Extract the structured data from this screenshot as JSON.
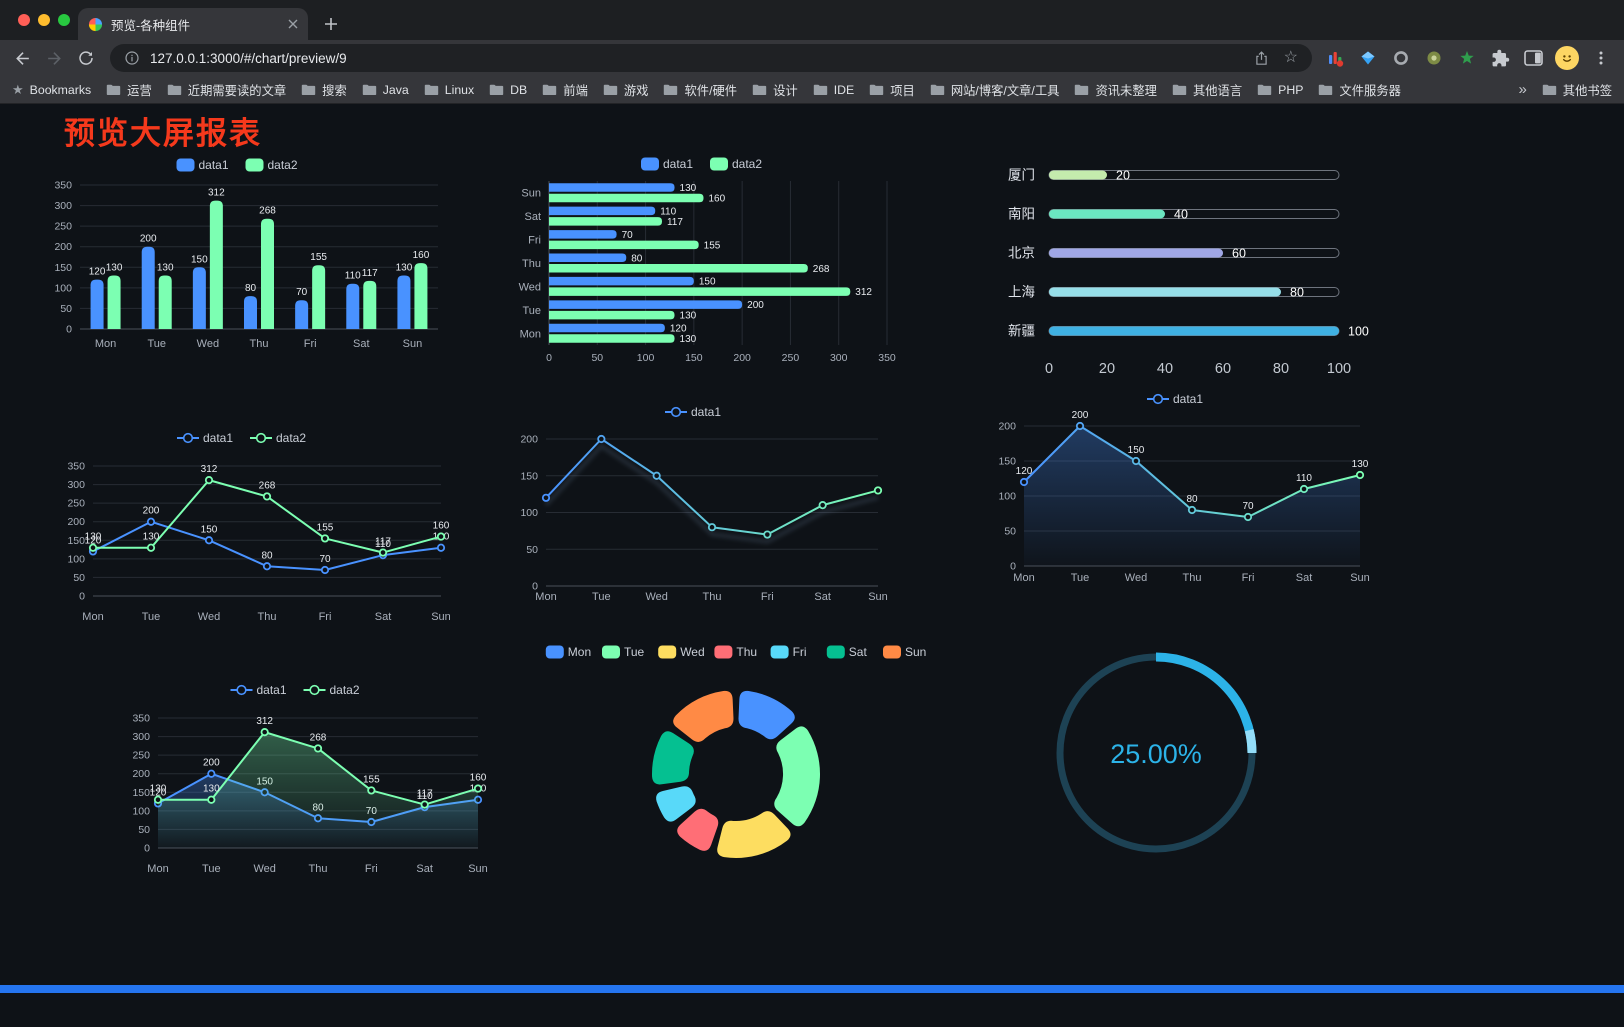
{
  "browser": {
    "tab_title": "预览-各种组件",
    "url": "127.0.0.1:3000/#/chart/preview/9",
    "bookmarks_root": "Bookmarks",
    "bookmarks": [
      "运营",
      "近期需要读的文章",
      "搜索",
      "Java",
      "Linux",
      "DB",
      "前端",
      "游戏",
      "软件/硬件",
      "设计",
      "IDE",
      "项目",
      "网站/博客/文章/工具",
      "资讯未整理",
      "其他语言",
      "PHP",
      "文件服务器"
    ],
    "overflow_glyph": "»",
    "other_bookmarks": "其他书签"
  },
  "page": {
    "title": "预览大屏报表",
    "title_color": "#f5391c",
    "background": "#0e1217",
    "footer_color": "#2575f0"
  },
  "palette": {
    "data1": "#4992ff",
    "data2": "#7cffb2",
    "axis_text": "#a9b0bb",
    "value_label": "#e8ebef",
    "grid_line": "#272c34",
    "axis_line": "#4b5059"
  },
  "chart_data": [
    {
      "id": "grouped-bar",
      "type": "bar",
      "legend": [
        "data1",
        "data2"
      ],
      "legend_position": "top",
      "categories": [
        "Mon",
        "Tue",
        "Wed",
        "Thu",
        "Fri",
        "Sat",
        "Sun"
      ],
      "series": [
        {
          "name": "data1",
          "color": "#4992ff",
          "values": [
            120,
            200,
            150,
            80,
            70,
            110,
            130
          ],
          "labels": true
        },
        {
          "name": "data2",
          "color": "#7cffb2",
          "values": [
            130,
            130,
            312,
            268,
            155,
            117,
            160
          ],
          "labels": true
        }
      ],
      "ylim": [
        0,
        350
      ],
      "ystep": 50,
      "yticks": [
        0,
        50,
        100,
        150,
        200,
        250,
        300,
        350
      ],
      "grid": true
    },
    {
      "id": "horizontal-bar",
      "type": "bar",
      "orientation": "horizontal",
      "legend": [
        "data1",
        "data2"
      ],
      "legend_position": "top",
      "categories": [
        "Mon",
        "Tue",
        "Wed",
        "Thu",
        "Fri",
        "Sat",
        "Sun"
      ],
      "series": [
        {
          "name": "data1",
          "color": "#4992ff",
          "values": [
            120,
            200,
            150,
            80,
            70,
            110,
            130
          ],
          "labels": true
        },
        {
          "name": "data2",
          "color": "#7cffb2",
          "values": [
            130,
            130,
            312,
            268,
            155,
            117,
            160
          ],
          "labels": true
        }
      ],
      "xlim": [
        0,
        350
      ],
      "xstep": 50,
      "xticks": [
        0,
        50,
        100,
        150,
        200,
        250,
        300,
        350
      ],
      "grid": true
    },
    {
      "id": "city-progress",
      "type": "bar",
      "style": "capsule-progress",
      "rows": [
        {
          "label": "厦门",
          "value": 20,
          "color": "#c4ebad"
        },
        {
          "label": "南阳",
          "value": 40,
          "color": "#6be6c1"
        },
        {
          "label": "北京",
          "value": 60,
          "color": "#a0a7e6"
        },
        {
          "label": "上海",
          "value": 80,
          "color": "#96dee8"
        },
        {
          "label": "新疆",
          "value": 100,
          "color": "#3fb1e3"
        }
      ],
      "xlim": [
        0,
        100
      ],
      "xticks": [
        0,
        20,
        40,
        60,
        80,
        100
      ]
    },
    {
      "id": "line-two-series",
      "type": "line",
      "legend": [
        "data1",
        "data2"
      ],
      "legend_position": "top",
      "categories": [
        "Mon",
        "Tue",
        "Wed",
        "Thu",
        "Fri",
        "Sat",
        "Sun"
      ],
      "series": [
        {
          "name": "data1",
          "color": "#4992ff",
          "values": [
            120,
            200,
            150,
            80,
            70,
            110,
            130
          ],
          "labels": true
        },
        {
          "name": "data2",
          "color": "#7cffb2",
          "values": [
            130,
            130,
            312,
            268,
            155,
            117,
            160
          ],
          "labels": true
        }
      ],
      "ylim": [
        0,
        350
      ],
      "ystep": 50,
      "yticks": [
        0,
        50,
        100,
        150,
        200,
        250,
        300,
        350
      ],
      "grid": true
    },
    {
      "id": "line-gradient",
      "type": "line",
      "legend": [
        "data1"
      ],
      "legend_position": "top",
      "categories": [
        "Mon",
        "Tue",
        "Wed",
        "Thu",
        "Fri",
        "Sat",
        "Sun"
      ],
      "series": [
        {
          "name": "data1",
          "color": "#4992ff",
          "gradient": [
            "#4992ff",
            "#7cffb2"
          ],
          "values": [
            120,
            200,
            150,
            80,
            70,
            110,
            130
          ],
          "labels": false,
          "shadow": true
        }
      ],
      "ylim": [
        0,
        200
      ],
      "ystep": 50,
      "yticks": [
        0,
        50,
        100,
        150,
        200
      ],
      "grid": true
    },
    {
      "id": "line-area-gradient",
      "type": "line",
      "legend": [
        "data1"
      ],
      "legend_position": "top",
      "categories": [
        "Mon",
        "Tue",
        "Wed",
        "Thu",
        "Fri",
        "Sat",
        "Sun"
      ],
      "series": [
        {
          "name": "data1",
          "color": "#4992ff",
          "gradient": [
            "#4992ff",
            "#7cffb2"
          ],
          "values": [
            120,
            200,
            150,
            80,
            70,
            110,
            130
          ],
          "labels": true,
          "area": true
        }
      ],
      "ylim": [
        0,
        200
      ],
      "ystep": 50,
      "yticks": [
        0,
        50,
        100,
        150,
        200
      ],
      "grid": true
    },
    {
      "id": "line-two-series-area",
      "type": "line",
      "legend": [
        "data1",
        "data2"
      ],
      "legend_position": "top",
      "categories": [
        "Mon",
        "Tue",
        "Wed",
        "Thu",
        "Fri",
        "Sat",
        "Sun"
      ],
      "series": [
        {
          "name": "data1",
          "color": "#4992ff",
          "values": [
            120,
            200,
            150,
            80,
            70,
            110,
            130
          ],
          "labels": true,
          "area": true
        },
        {
          "name": "data2",
          "color": "#7cffb2",
          "values": [
            130,
            130,
            312,
            268,
            155,
            117,
            160
          ],
          "labels": true,
          "area": true
        }
      ],
      "ylim": [
        0,
        350
      ],
      "ystep": 50,
      "yticks": [
        0,
        50,
        100,
        150,
        200,
        250,
        300,
        350
      ],
      "grid": true
    },
    {
      "id": "doughnut",
      "type": "pie",
      "legend_position": "top",
      "legend": [
        "Mon",
        "Tue",
        "Wed",
        "Thu",
        "Fri",
        "Sat",
        "Sun"
      ],
      "values": [
        120,
        200,
        150,
        80,
        70,
        110,
        130
      ],
      "colors": [
        "#4992ff",
        "#7cffb2",
        "#fddd60",
        "#ff6e76",
        "#58d9f9",
        "#05c091",
        "#ff8a45"
      ],
      "inner_radius_ratio": 0.56
    },
    {
      "id": "gauge",
      "type": "gauge",
      "value": 25,
      "label": "25.00%",
      "color": "#2cb3e8",
      "cap_color": "#93ddf8",
      "track_color": "#1d4254"
    }
  ]
}
